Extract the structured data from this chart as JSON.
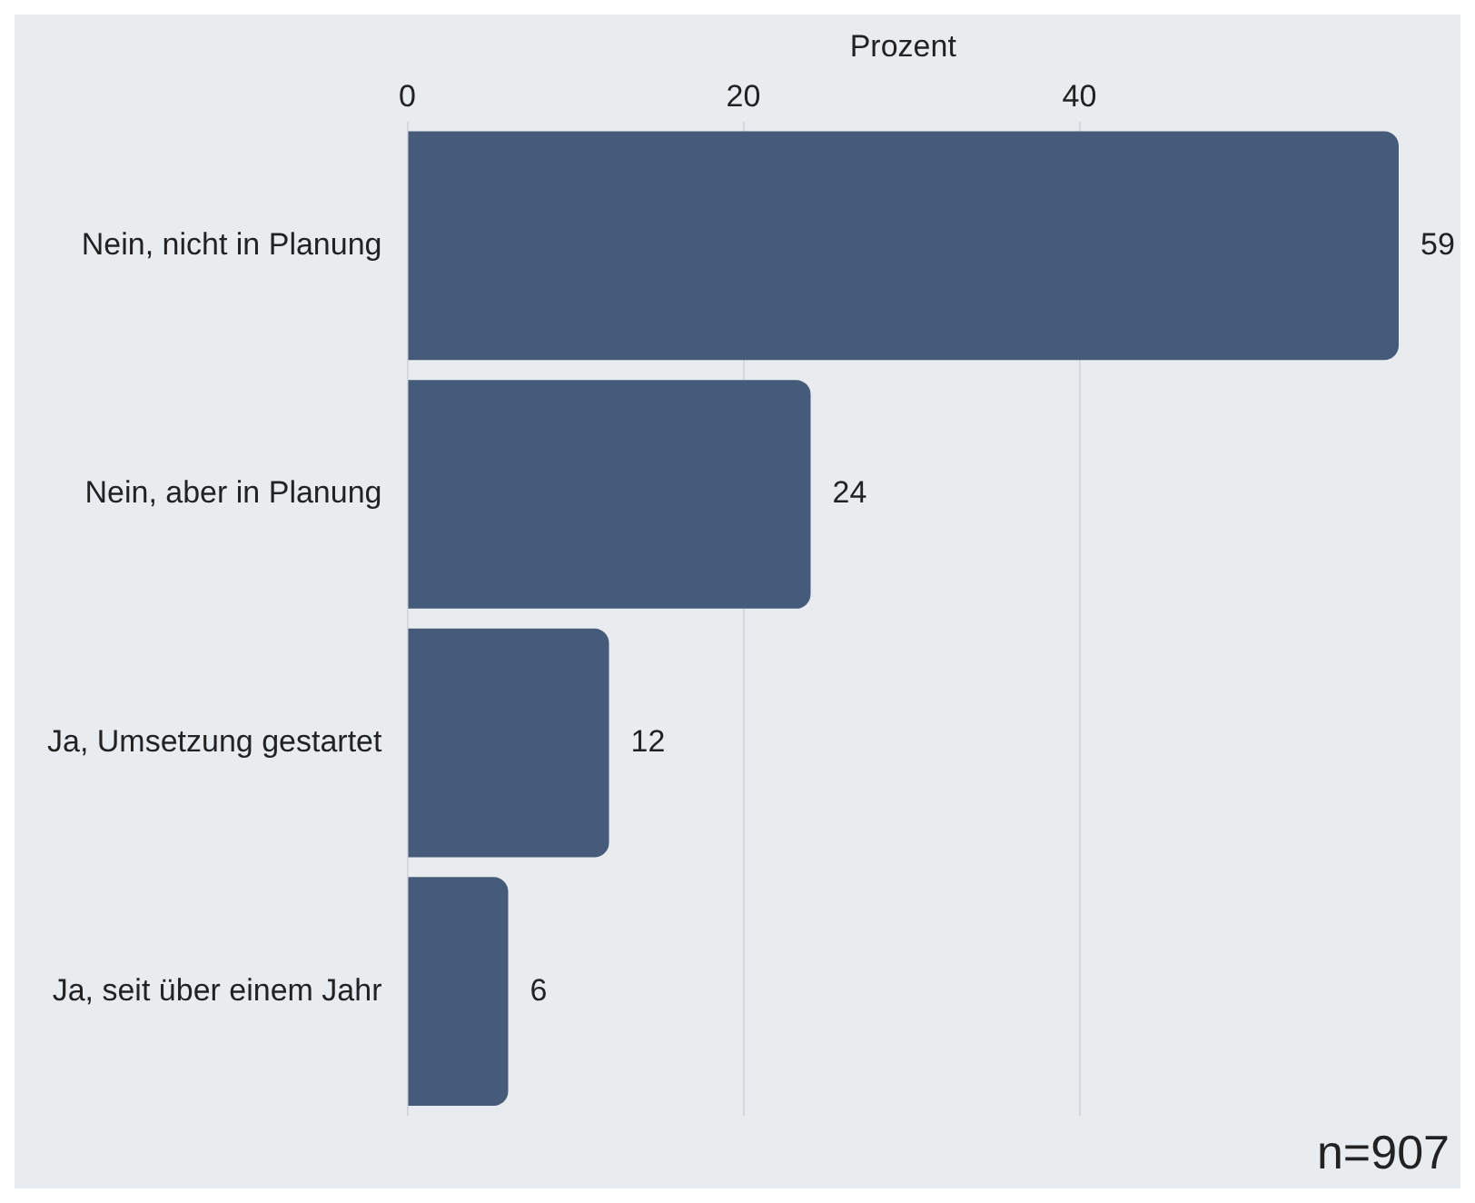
{
  "chart_data": {
    "type": "bar",
    "orientation": "horizontal",
    "xlabel": "Prozent",
    "categories": [
      "Nein, nicht in Planung",
      "Nein, aber in Planung",
      "Ja, Umsetzung gestartet",
      "Ja, seit über einem Jahr"
    ],
    "values": [
      59,
      24,
      12,
      6
    ],
    "color": "#465a7a",
    "xlim": [
      0,
      59
    ],
    "xticks": [
      0,
      20,
      40
    ],
    "grid": "x",
    "data_labels": true,
    "legend": false,
    "annotations": [
      "n=907"
    ]
  }
}
